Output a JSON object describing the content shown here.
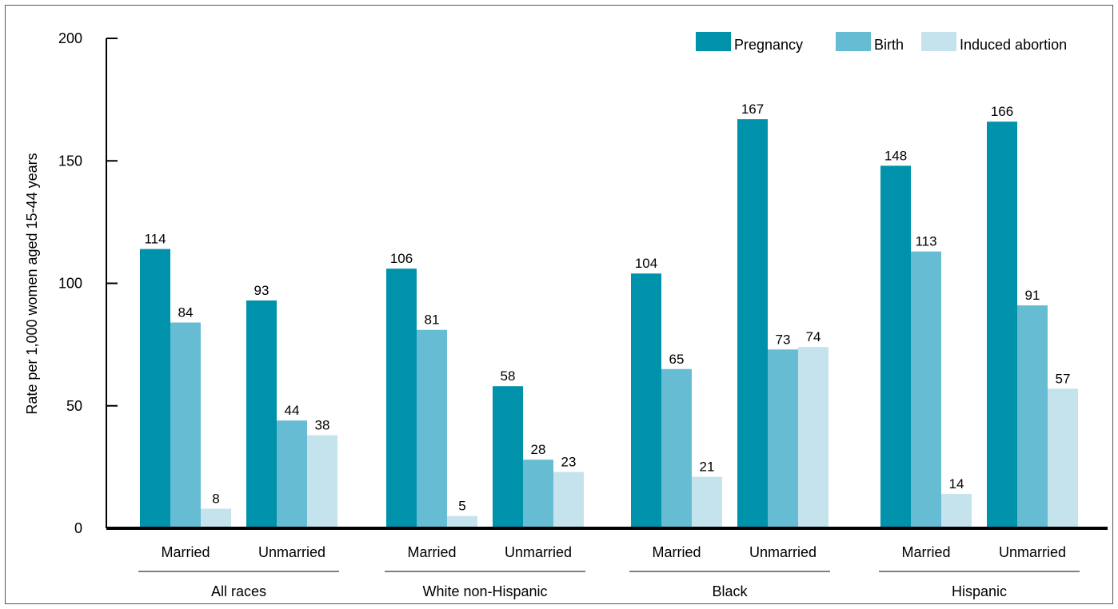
{
  "chart_data": {
    "type": "bar",
    "ylabel": "Rate per 1,000 women aged 15-44 years",
    "ylim": [
      0,
      200
    ],
    "yticks": [
      0,
      50,
      100,
      150,
      200
    ],
    "legend_position": "top-right",
    "colors": {
      "Pregnancy": "#0092ab",
      "Birth": "#66bdd3",
      "Induced abortion": "#c4e3ec"
    },
    "series_names": [
      "Pregnancy",
      "Birth",
      "Induced abortion"
    ],
    "groups": [
      {
        "name": "All races",
        "categories": [
          {
            "label": "Married",
            "values": [
              114,
              84,
              8
            ]
          },
          {
            "label": "Unmarried",
            "values": [
              93,
              44,
              38
            ]
          }
        ]
      },
      {
        "name": "White non-Hispanic",
        "categories": [
          {
            "label": "Married",
            "values": [
              106,
              81,
              5
            ]
          },
          {
            "label": "Unmarried",
            "values": [
              58,
              28,
              23
            ]
          }
        ]
      },
      {
        "name": "Black",
        "categories": [
          {
            "label": "Married",
            "values": [
              104,
              65,
              21
            ]
          },
          {
            "label": "Unmarried",
            "values": [
              167,
              73,
              74
            ]
          }
        ]
      },
      {
        "name": "Hispanic",
        "categories": [
          {
            "label": "Married",
            "values": [
              148,
              113,
              14
            ]
          },
          {
            "label": "Unmarried",
            "values": [
              166,
              91,
              57
            ]
          }
        ]
      }
    ]
  }
}
